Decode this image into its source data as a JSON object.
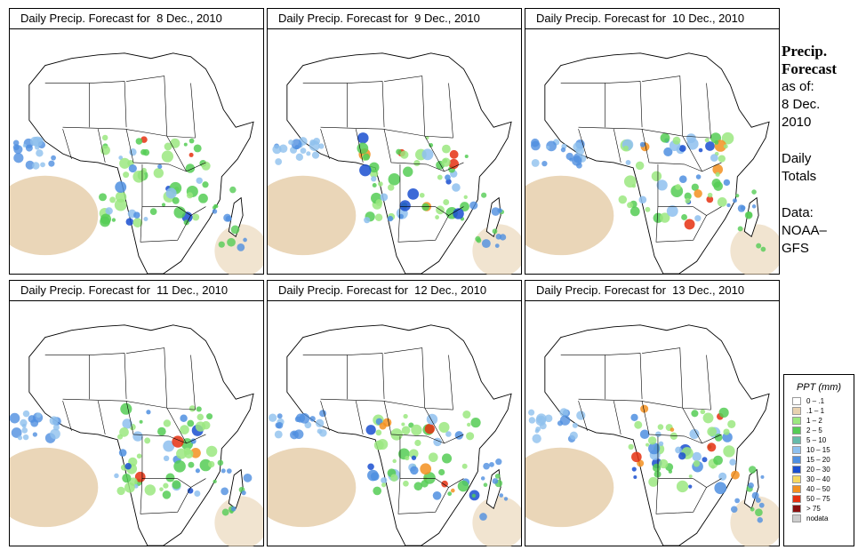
{
  "panels": [
    {
      "title": "Daily Precip. Forecast for  8 Dec., 2010",
      "day": 8
    },
    {
      "title": "Daily Precip. Forecast for  9 Dec., 2010",
      "day": 9
    },
    {
      "title": "Daily Precip. Forecast for  10 Dec., 2010",
      "day": 10
    },
    {
      "title": "Daily Precip. Forecast for  11 Dec., 2010",
      "day": 11
    },
    {
      "title": "Daily Precip. Forecast for  12 Dec., 2010",
      "day": 12
    },
    {
      "title": "Daily Precip. Forecast for  13 Dec., 2010",
      "day": 13
    }
  ],
  "sidebar": {
    "heading1": "Precip.",
    "heading2": "Forecast",
    "asof": "as of:",
    "date1": "8 Dec.",
    "date2": "2010",
    "daily1": "Daily",
    "daily2": "Totals",
    "data1": "Data:",
    "data2": "NOAA–",
    "data3": "GFS"
  },
  "legend": {
    "title": "PPT (mm)",
    "items": [
      {
        "label": "0 – .1",
        "color": "#ffffff"
      },
      {
        "label": ".1 – 1",
        "color": "#e8d2b0"
      },
      {
        "label": "1 – 2",
        "color": "#9be880"
      },
      {
        "label": "2 – 5",
        "color": "#55cc55"
      },
      {
        "label": "5 – 10",
        "color": "#66bbaa"
      },
      {
        "label": "10 – 15",
        "color": "#8ec0ee"
      },
      {
        "label": "15 – 20",
        "color": "#4f8fe0"
      },
      {
        "label": "20 – 30",
        "color": "#1a4fd0"
      },
      {
        "label": "30 – 40",
        "color": "#f6d860"
      },
      {
        "label": "40 – 50",
        "color": "#f39020"
      },
      {
        "label": "50 – 75",
        "color": "#e53010"
      },
      {
        "label": "> 75",
        "color": "#8a1010"
      },
      {
        "label": "nodata",
        "color": "#cccccc"
      }
    ]
  }
}
